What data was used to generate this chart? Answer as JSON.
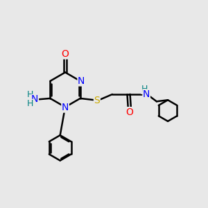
{
  "background_color": "#e8e8e8",
  "bond_color": "#000000",
  "atom_colors": {
    "N": "#0000ff",
    "O": "#ff0000",
    "S": "#ccaa00",
    "H": "#008080",
    "C": "#000000"
  },
  "figsize": [
    3.0,
    3.0
  ],
  "dpi": 100
}
